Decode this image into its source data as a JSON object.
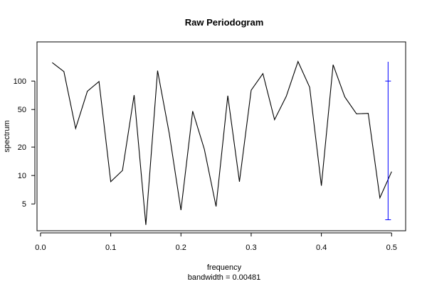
{
  "chart_data": {
    "type": "line",
    "title": "Raw Periodogram",
    "xlabel": "frequency",
    "sublabel": "bandwidth = 0.00481",
    "ylabel": "spectrum",
    "y_scale": "log",
    "xlim": [
      -0.005,
      0.52
    ],
    "ylim": [
      2.6,
      260
    ],
    "x_ticks": [
      0.0,
      0.1,
      0.2,
      0.3,
      0.4,
      0.5
    ],
    "x_tick_labels": [
      "0.0",
      "0.1",
      "0.2",
      "0.3",
      "0.4",
      "0.5"
    ],
    "y_ticks": [
      5,
      10,
      20,
      50,
      100
    ],
    "y_tick_labels": [
      "5",
      "10",
      "20",
      "50",
      "100"
    ],
    "series": [
      {
        "x": [
          0.0167,
          0.0333,
          0.05,
          0.0667,
          0.0833,
          0.1,
          0.1167,
          0.1333,
          0.15,
          0.1667,
          0.1833,
          0.2,
          0.2167,
          0.2333,
          0.25,
          0.2667,
          0.2833,
          0.3,
          0.3167,
          0.3333,
          0.35,
          0.3667,
          0.3833,
          0.4,
          0.4167,
          0.4333,
          0.45,
          0.4667,
          0.4833,
          0.5
        ],
        "values": [
          157,
          126,
          31.5,
          78,
          99,
          8.6,
          11.3,
          71,
          3.0,
          129,
          28,
          4.3,
          48,
          19,
          4.7,
          70,
          8.6,
          80,
          120,
          39,
          69,
          161,
          86,
          7.8,
          149,
          68,
          45,
          45.5,
          5.8,
          11
        ]
      }
    ],
    "confidence_bar": {
      "x": 0.495,
      "lower": 3.4,
      "upper": 160,
      "center": 100,
      "color": "#0000ff"
    },
    "grid": false,
    "legend": "none"
  }
}
